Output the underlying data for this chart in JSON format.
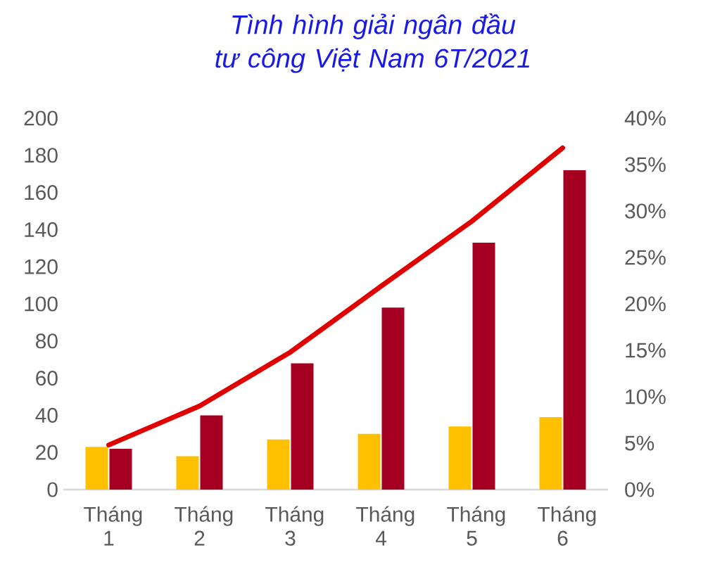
{
  "chart_data": {
    "type": "bar",
    "title": "Tình hình giải ngân đầu tư công Việt Nam 6T/2021",
    "categories": [
      "Tháng 1",
      "Tháng 2",
      "Tháng 3",
      "Tháng 4",
      "Tháng 5",
      "Tháng 6"
    ],
    "series": [
      {
        "color": "#ffc000",
        "values": [
          23,
          18,
          27,
          30,
          34,
          39
        ]
      },
      {
        "color": "#a50021",
        "values": [
          22,
          40,
          68,
          98,
          133,
          172
        ]
      },
      {
        "type": "line",
        "axis": "y2",
        "color": "#e00000",
        "values": [
          4.8,
          9.0,
          14.8,
          21.9,
          28.9,
          36.8
        ]
      }
    ],
    "ylim": [
      0,
      200
    ],
    "yticks": [
      0,
      20,
      40,
      60,
      80,
      100,
      120,
      140,
      160,
      180,
      200
    ],
    "y2lim": [
      0,
      40
    ],
    "y2ticks": [
      {
        "value": 0,
        "label": "0%"
      },
      {
        "value": 5,
        "label": "5%"
      },
      {
        "value": 10,
        "label": "10%"
      },
      {
        "value": 15,
        "label": "15%"
      },
      {
        "value": 20,
        "label": "20%"
      },
      {
        "value": 25,
        "label": "25%"
      },
      {
        "value": 30,
        "label": "30%"
      },
      {
        "value": 35,
        "label": "35%"
      },
      {
        "value": 40,
        "label": "40%"
      }
    ]
  }
}
